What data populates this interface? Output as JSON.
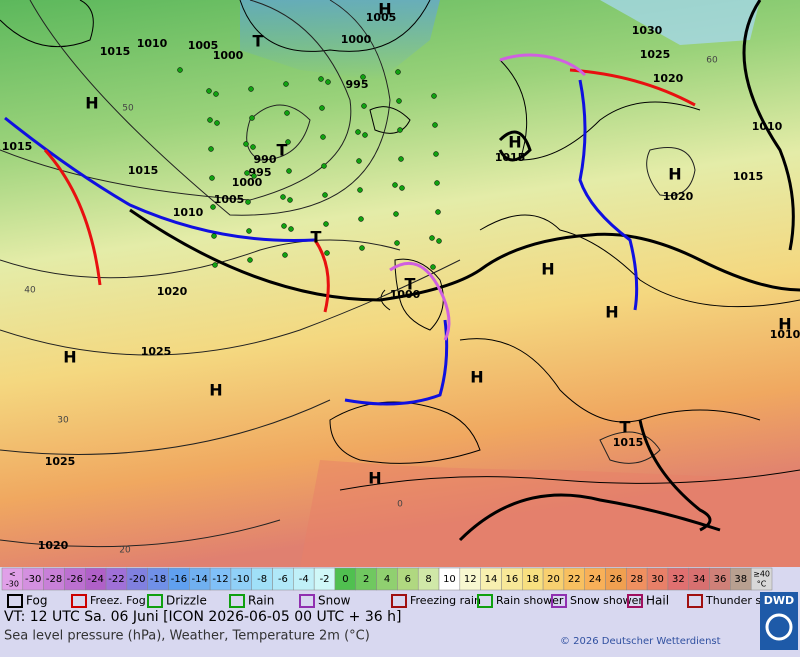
{
  "map": {
    "pressure_labels": [
      "1015",
      "1010",
      "1005",
      "1000",
      "1005",
      "1000",
      "995",
      "1015",
      "1015",
      "990",
      "995",
      "1000",
      "1005",
      "1010",
      "1020",
      "1025",
      "1025",
      "1020",
      "1015",
      "1000",
      "1020",
      "1015",
      "1010",
      "1020",
      "1025",
      "1030",
      "1015",
      "1010"
    ],
    "centers": [
      "H",
      "T",
      "T",
      "H",
      "H",
      "T",
      "T",
      "H",
      "H",
      "H",
      "H",
      "H",
      "H",
      "H",
      "T",
      "H"
    ],
    "isotherm_labels": [
      "40",
      "30",
      "20",
      "0",
      "60",
      "50"
    ]
  },
  "scale": [
    {
      "lines": [
        "<",
        "-30"
      ],
      "color": "#e0a0e8"
    },
    {
      "lines": [
        "-30"
      ],
      "color": "#d490e0"
    },
    {
      "lines": [
        "-28"
      ],
      "color": "#c880d8"
    },
    {
      "lines": [
        "-26"
      ],
      "color": "#bc70d0"
    },
    {
      "lines": [
        "-24"
      ],
      "color": "#b060c8"
    },
    {
      "lines": [
        "-22"
      ],
      "color": "#a070d8"
    },
    {
      "lines": [
        "-20"
      ],
      "color": "#8080e0"
    },
    {
      "lines": [
        "-18"
      ],
      "color": "#7090e8"
    },
    {
      "lines": [
        "-16"
      ],
      "color": "#60a0f0"
    },
    {
      "lines": [
        "-14"
      ],
      "color": "#70b0f0"
    },
    {
      "lines": [
        "-12"
      ],
      "color": "#80c0f8"
    },
    {
      "lines": [
        "-10"
      ],
      "color": "#90d0f8"
    },
    {
      "lines": [
        "-8"
      ],
      "color": "#a0e0f8"
    },
    {
      "lines": [
        "-6"
      ],
      "color": "#b0e8f8"
    },
    {
      "lines": [
        "-4"
      ],
      "color": "#c0f0f8"
    },
    {
      "lines": [
        "-2"
      ],
      "color": "#d0f8f8"
    },
    {
      "lines": [
        "0"
      ],
      "color": "#50c050"
    },
    {
      "lines": [
        "2"
      ],
      "color": "#70c860"
    },
    {
      "lines": [
        "4"
      ],
      "color": "#90d070"
    },
    {
      "lines": [
        "6"
      ],
      "color": "#b0d880"
    },
    {
      "lines": [
        "8"
      ],
      "color": "#d0e8a8"
    },
    {
      "lines": [
        "10"
      ],
      "color": "#ffffff"
    },
    {
      "lines": [
        "12"
      ],
      "color": "#f8f8d0"
    },
    {
      "lines": [
        "14"
      ],
      "color": "#f8f0b0"
    },
    {
      "lines": [
        "16"
      ],
      "color": "#f8e898"
    },
    {
      "lines": [
        "18"
      ],
      "color": "#f8e080"
    },
    {
      "lines": [
        "20"
      ],
      "color": "#f8d070"
    },
    {
      "lines": [
        "22"
      ],
      "color": "#f8c060"
    },
    {
      "lines": [
        "24"
      ],
      "color": "#f8b058"
    },
    {
      "lines": [
        "26"
      ],
      "color": "#f0a050"
    },
    {
      "lines": [
        "28"
      ],
      "color": "#f09060"
    },
    {
      "lines": [
        "30"
      ],
      "color": "#e88068"
    },
    {
      "lines": [
        "32"
      ],
      "color": "#e07070"
    },
    {
      "lines": [
        "34"
      ],
      "color": "#d87070"
    },
    {
      "lines": [
        "36"
      ],
      "color": "#d08078"
    },
    {
      "lines": [
        "38"
      ],
      "color": "#b8a090"
    },
    {
      "lines": [
        "≥40",
        "°C"
      ],
      "color": "#d8d8d8"
    }
  ],
  "weather_legend": [
    "Fog",
    "Freez. Fog",
    "Drizzle",
    "Rain",
    "Snow",
    "Freezing rain",
    "Rain shower",
    "Snow shower",
    "Hail",
    "Thunder storm"
  ],
  "footer": {
    "valid_time": "VT: 12 UTC Sa.  06 Juni [ICON 2026-06-05  00 UTC + 36 h]",
    "description": "Sea level pressure (hPa), Weather, Temperature 2m (°C)",
    "copyright": "© 2026 Deutscher Wetterdienst",
    "logo": "DWD"
  }
}
